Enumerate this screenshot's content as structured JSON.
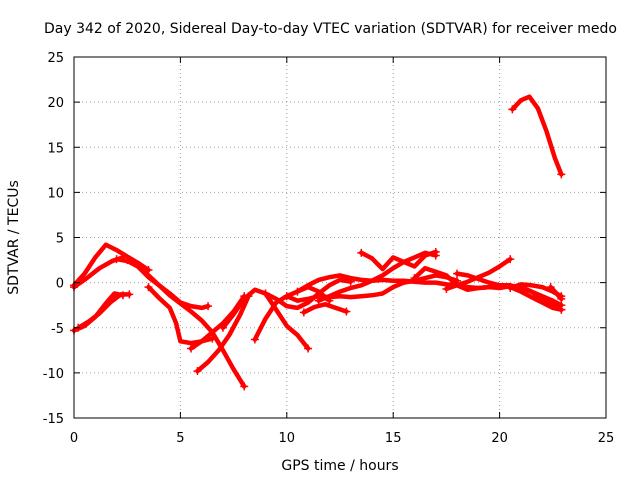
{
  "chart_data": {
    "type": "scatter",
    "title": "Day 342 of 2020, Sidereal Day-to-day VTEC variation (SDTVAR) for receiver medo",
    "xlabel": "GPS time / hours",
    "ylabel": "SDTVAR / TECUs",
    "xlim": [
      0,
      25
    ],
    "ylim": [
      -15,
      25
    ],
    "xticks": [
      0,
      5,
      10,
      15,
      20,
      25
    ],
    "yticks": [
      -15,
      -10,
      -5,
      0,
      5,
      10,
      15,
      20,
      25
    ],
    "xtick_labels": [
      "0",
      "5",
      "10",
      "15",
      "20",
      "25"
    ],
    "ytick_labels": [
      "-15",
      "-10",
      "-5",
      "0",
      "5",
      "10",
      "15",
      "20",
      "25"
    ],
    "grid": true,
    "marker": "+",
    "color": "#ff0000",
    "series": [
      {
        "name": "s1",
        "x": [
          0,
          0.5,
          1.0,
          1.5,
          2.0,
          2.5,
          3.0,
          3.5
        ],
        "y": [
          -0.3,
          1.0,
          2.8,
          4.2,
          3.6,
          2.9,
          2.2,
          1.4
        ]
      },
      {
        "name": "s2",
        "x": [
          0,
          0.6,
          1.2,
          1.8,
          2.3
        ],
        "y": [
          -0.5,
          0.5,
          1.6,
          2.4,
          2.8
        ]
      },
      {
        "name": "s3",
        "x": [
          2.0,
          2.5,
          3.0,
          3.5,
          4.0,
          4.5,
          5.0,
          5.5,
          6.0,
          6.3
        ],
        "y": [
          2.6,
          2.4,
          1.8,
          0.8,
          -0.3,
          -1.2,
          -2.2,
          -2.6,
          -2.8,
          -2.6
        ]
      },
      {
        "name": "s4",
        "x": [
          0,
          0.5,
          1.0,
          1.5,
          1.9,
          2.3
        ],
        "y": [
          -5.3,
          -4.8,
          -3.8,
          -2.3,
          -1.2,
          -1.4
        ]
      },
      {
        "name": "s5",
        "x": [
          0.2,
          0.7,
          1.2,
          1.7,
          2.2,
          2.6
        ],
        "y": [
          -5.0,
          -4.3,
          -3.4,
          -2.2,
          -1.3,
          -1.3
        ]
      },
      {
        "name": "s6",
        "x": [
          2.5,
          3.0,
          3.5,
          4.0,
          4.5,
          5.0,
          5.5,
          6.0,
          6.5,
          7.0,
          7.5,
          8.0
        ],
        "y": [
          2.5,
          1.8,
          0.6,
          -0.3,
          -1.4,
          -2.3,
          -3.2,
          -4.2,
          -5.5,
          -7.5,
          -9.6,
          -11.5
        ]
      },
      {
        "name": "s7",
        "x": [
          3.5,
          4.0,
          4.5,
          4.8,
          5.0,
          5.5,
          6.0,
          6.5
        ],
        "y": [
          -0.5,
          -1.7,
          -2.8,
          -4.5,
          -6.5,
          -6.7,
          -6.5,
          -6.2
        ]
      },
      {
        "name": "s8",
        "x": [
          5.8,
          6.3,
          6.8,
          7.3,
          7.8,
          8.2
        ],
        "y": [
          -9.8,
          -8.8,
          -7.5,
          -5.8,
          -3.6,
          -1.5
        ]
      },
      {
        "name": "s9",
        "x": [
          5.5,
          6.0,
          6.5,
          7.0,
          7.5,
          8.0
        ],
        "y": [
          -7.3,
          -6.5,
          -5.5,
          -4.5,
          -3.2,
          -1.5
        ]
      },
      {
        "name": "s10",
        "x": [
          7.0,
          7.5,
          8.0,
          8.5,
          9.0,
          9.5,
          10.0,
          10.5,
          11.0
        ],
        "y": [
          -5.0,
          -3.5,
          -1.8,
          -0.8,
          -1.2,
          -3.0,
          -4.8,
          -5.8,
          -7.3
        ]
      },
      {
        "name": "s11",
        "x": [
          8.5,
          9.0,
          9.5,
          10.0,
          10.5,
          11.0,
          11.5,
          12.0
        ],
        "y": [
          -6.3,
          -4.0,
          -2.2,
          -1.5,
          -1.0,
          -0.5,
          -1.0,
          -2.0
        ]
      },
      {
        "name": "s12",
        "x": [
          9.0,
          9.5,
          10.0,
          10.5,
          11.0,
          11.5,
          12.0,
          12.5,
          13.0
        ],
        "y": [
          -1.2,
          -1.8,
          -2.6,
          -2.8,
          -2.2,
          -1.2,
          -0.3,
          0.3,
          0.1
        ]
      },
      {
        "name": "s13",
        "x": [
          10.0,
          10.5,
          11.0,
          11.5,
          12.0,
          12.5,
          13.0,
          13.5,
          14.0,
          14.5,
          15.0,
          15.5,
          16.0,
          16.5,
          17.0,
          17.5,
          18.0
        ],
        "y": [
          -1.5,
          -2.0,
          -1.8,
          -1.5,
          -1.6,
          -1.5,
          -1.6,
          -1.5,
          -1.4,
          -1.2,
          -0.5,
          0.0,
          0.2,
          0.5,
          0.8,
          0.6,
          0.2
        ]
      },
      {
        "name": "s14",
        "x": [
          10.5,
          11.0,
          11.5,
          12.0,
          12.5,
          13.0,
          13.5,
          14.0,
          14.5,
          15.0,
          15.5,
          16.0,
          16.5,
          17.0,
          17.5,
          18.0,
          18.5,
          19.0,
          19.5,
          20.0,
          20.5,
          21.0,
          21.5,
          22.0,
          22.5,
          22.9
        ],
        "y": [
          -1.0,
          -0.3,
          0.3,
          0.6,
          0.8,
          0.5,
          0.3,
          0.2,
          0.3,
          0.2,
          0.2,
          0.1,
          0.0,
          0.0,
          -0.2,
          -0.3,
          -0.5,
          -0.6,
          -0.5,
          -0.6,
          -0.4,
          -0.5,
          -1.0,
          -1.8,
          -2.5,
          -3.0
        ]
      },
      {
        "name": "s15",
        "x": [
          10.8,
          11.3,
          11.8,
          12.3,
          12.8
        ],
        "y": [
          -3.3,
          -2.7,
          -2.4,
          -2.8,
          -3.2
        ]
      },
      {
        "name": "s16",
        "x": [
          11.5,
          12.0,
          12.5,
          13.0,
          13.5,
          14.0,
          14.5,
          15.0,
          15.5,
          16.0,
          16.5,
          17.0
        ],
        "y": [
          -2.0,
          -1.5,
          -1.0,
          -0.6,
          -0.3,
          0.2,
          0.8,
          1.6,
          2.3,
          2.8,
          3.3,
          3.0
        ]
      },
      {
        "name": "s17",
        "x": [
          13.5,
          14.0,
          14.5,
          15.0,
          15.5,
          16.0,
          16.5,
          17.0
        ],
        "y": [
          3.3,
          2.7,
          1.5,
          2.8,
          2.3,
          1.8,
          3.0,
          3.4
        ]
      },
      {
        "name": "s18",
        "x": [
          16.0,
          16.5,
          17.0,
          17.5,
          18.0,
          18.5,
          19.0,
          19.5,
          20.0,
          20.5,
          21.0,
          21.5,
          22.0,
          22.5,
          22.9
        ],
        "y": [
          0.5,
          1.6,
          1.2,
          0.8,
          -0.3,
          -0.8,
          -0.6,
          -0.5,
          -0.3,
          -0.3,
          -0.6,
          -1.0,
          -1.5,
          -2.0,
          -2.5
        ]
      },
      {
        "name": "s19",
        "x": [
          17.5,
          18.0,
          18.5,
          19.0,
          19.5,
          20.0,
          20.5
        ],
        "y": [
          -0.7,
          -0.3,
          0.1,
          0.6,
          1.1,
          1.8,
          2.6
        ]
      },
      {
        "name": "s20",
        "x": [
          18.0,
          18.5,
          19.0,
          19.5,
          20.0,
          20.5,
          21.0,
          21.5,
          22.0,
          22.5,
          22.9
        ],
        "y": [
          1.0,
          0.8,
          0.4,
          0.0,
          -0.3,
          -0.5,
          -1.0,
          -1.6,
          -2.2,
          -2.8,
          -3.0
        ]
      },
      {
        "name": "s21",
        "x": [
          20.5,
          21.0,
          21.5,
          22.0,
          22.5,
          22.9
        ],
        "y": [
          -0.6,
          -0.2,
          -0.3,
          -0.5,
          -1.0,
          -1.5
        ]
      },
      {
        "name": "s22",
        "x": [
          22.4,
          22.6,
          22.9
        ],
        "y": [
          -0.5,
          -1.0,
          -1.8
        ]
      },
      {
        "name": "s23",
        "x": [
          20.6,
          21.0,
          21.4,
          21.8,
          22.2,
          22.6,
          22.9
        ],
        "y": [
          19.2,
          20.2,
          20.6,
          19.3,
          16.8,
          13.8,
          12.0
        ]
      }
    ]
  }
}
